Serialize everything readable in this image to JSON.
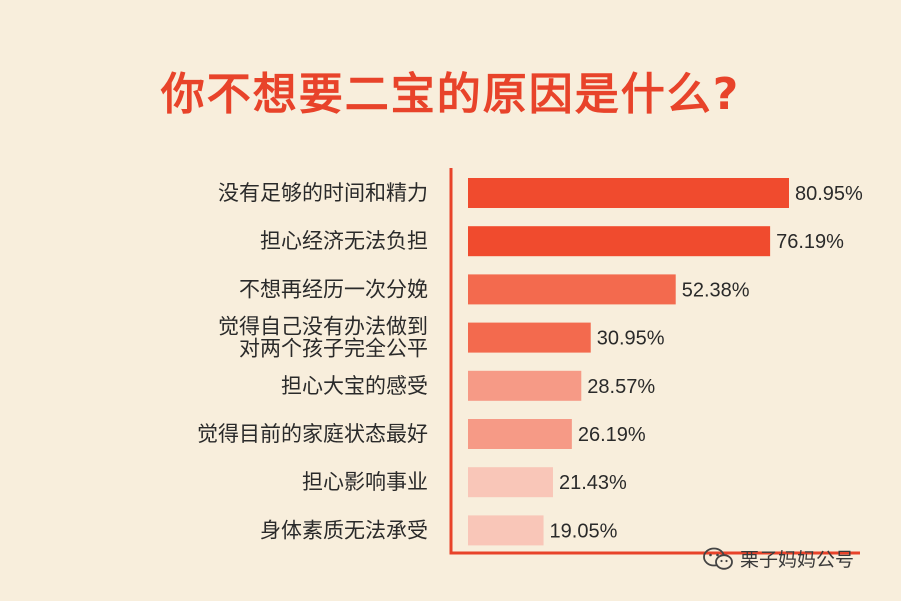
{
  "chart_data": {
    "type": "bar",
    "orientation": "horizontal",
    "title": "你不想要二宝的原因是什么?",
    "categories": [
      "没有足够的时间和精力",
      "担心经济无法负担",
      "不想再经历一次分娩",
      "觉得自己没有办法做到\n对两个孩子完全公平",
      "担心大宝的感受",
      "觉得目前的家庭状态最好",
      "担心影响事业",
      "身体素质无法承受"
    ],
    "values": [
      80.95,
      76.19,
      52.38,
      30.95,
      28.57,
      26.19,
      21.43,
      19.05
    ],
    "value_labels": [
      "80.95%",
      "76.19%",
      "52.38%",
      "30.95%",
      "28.57%",
      "26.19%",
      "21.43%",
      "19.05%"
    ],
    "bar_colors": [
      "#f04b2e",
      "#f04b2e",
      "#f36a4e",
      "#f36a4e",
      "#f69a86",
      "#f69a86",
      "#f9c6b8",
      "#f9c6b8"
    ],
    "axis_color": "#e8432a",
    "xlim": [
      0,
      100
    ]
  },
  "watermark": {
    "text": "栗子妈妈公号",
    "icon": "wechat-icon"
  }
}
